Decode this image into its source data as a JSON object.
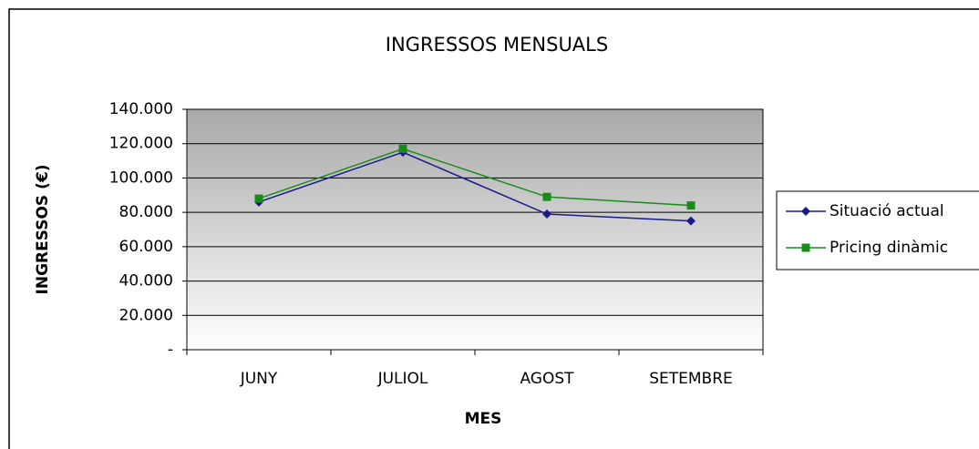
{
  "chart_data": {
    "type": "line",
    "title": "INGRESSOS MENSUALS",
    "x_label": "MES",
    "y_label": "INGRESSOS (€)",
    "categories": [
      "JUNY",
      "JULIOL",
      "AGOST",
      "SETEMBRE"
    ],
    "series": [
      {
        "name": "Situació actual",
        "color": "#1a1a8c",
        "marker": "diamond",
        "values": [
          86000,
          115000,
          79000,
          75000
        ]
      },
      {
        "name": "Pricing dinàmic",
        "color": "#1a8c1a",
        "marker": "square",
        "values": [
          88000,
          117000,
          89000,
          84000
        ]
      }
    ],
    "ylim": [
      0,
      140000
    ],
    "yticks": [
      {
        "value": 0,
        "label": "-"
      },
      {
        "value": 20000,
        "label": "20.000"
      },
      {
        "value": 40000,
        "label": "40.000"
      },
      {
        "value": 60000,
        "label": "60.000"
      },
      {
        "value": 80000,
        "label": "80.000"
      },
      {
        "value": 100000,
        "label": "100.000"
      },
      {
        "value": 120000,
        "label": "120.000"
      },
      {
        "value": 140000,
        "label": "140.000"
      }
    ],
    "grid": true,
    "legend": "right"
  }
}
